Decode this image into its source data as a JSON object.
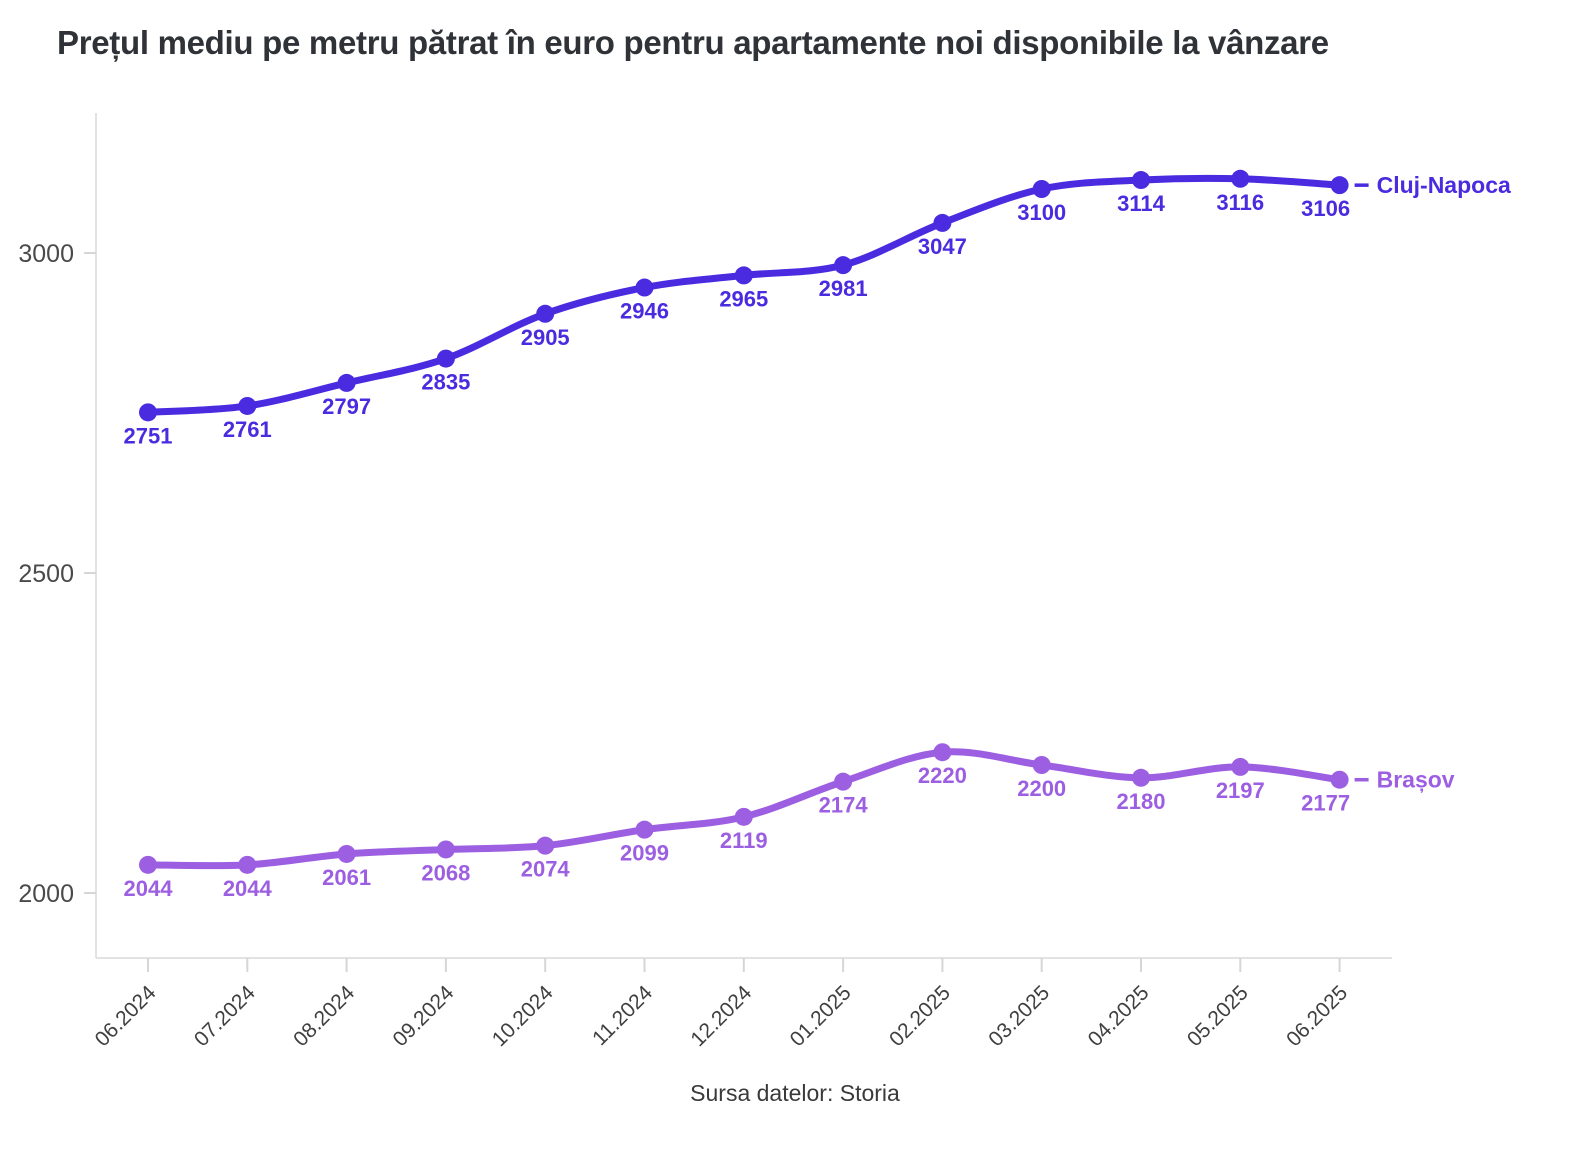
{
  "title": "Prețul mediu pe metru pătrat în euro pentru apartamente noi disponibile la vânzare",
  "source": "Sursa datelor: Storia",
  "colors": {
    "title": "#2F3237",
    "axis_line": "#E2E2E2",
    "tick_mark": "#D6D6D6",
    "y_label": "#4A4A4A",
    "x_label": "#3F3F3F",
    "source_text": "#3A3A3A",
    "cluj_napoca": "#4A2BE0",
    "brasov": "#9D5FE2"
  },
  "chart_data": {
    "type": "line",
    "title": "Prețul mediu pe metru pătrat în euro pentru apartamente noi disponibile la vânzare",
    "xlabel": "",
    "ylabel": "",
    "grid": false,
    "legend_position": "end-of-line",
    "categories": [
      "06.2024",
      "07.2024",
      "08.2024",
      "09.2024",
      "10.2024",
      "11.2024",
      "12.2024",
      "01.2025",
      "02.2025",
      "03.2025",
      "04.2025",
      "05.2025",
      "06.2025"
    ],
    "y_ticks": [
      2000,
      2500,
      3000
    ],
    "ylim": [
      1900,
      3215
    ],
    "series": [
      {
        "name": "Cluj-Napoca",
        "slug": "cluj-napoca",
        "color": "#4A2BE0",
        "values": [
          2751,
          2761,
          2797,
          2835,
          2905,
          2946,
          2965,
          2981,
          3047,
          3100,
          3114,
          3116,
          3106
        ]
      },
      {
        "name": "Brașov",
        "slug": "brasov",
        "color": "#9D5FE2",
        "values": [
          2044,
          2044,
          2061,
          2068,
          2074,
          2099,
          2119,
          2174,
          2220,
          2200,
          2180,
          2197,
          2177
        ]
      }
    ]
  }
}
